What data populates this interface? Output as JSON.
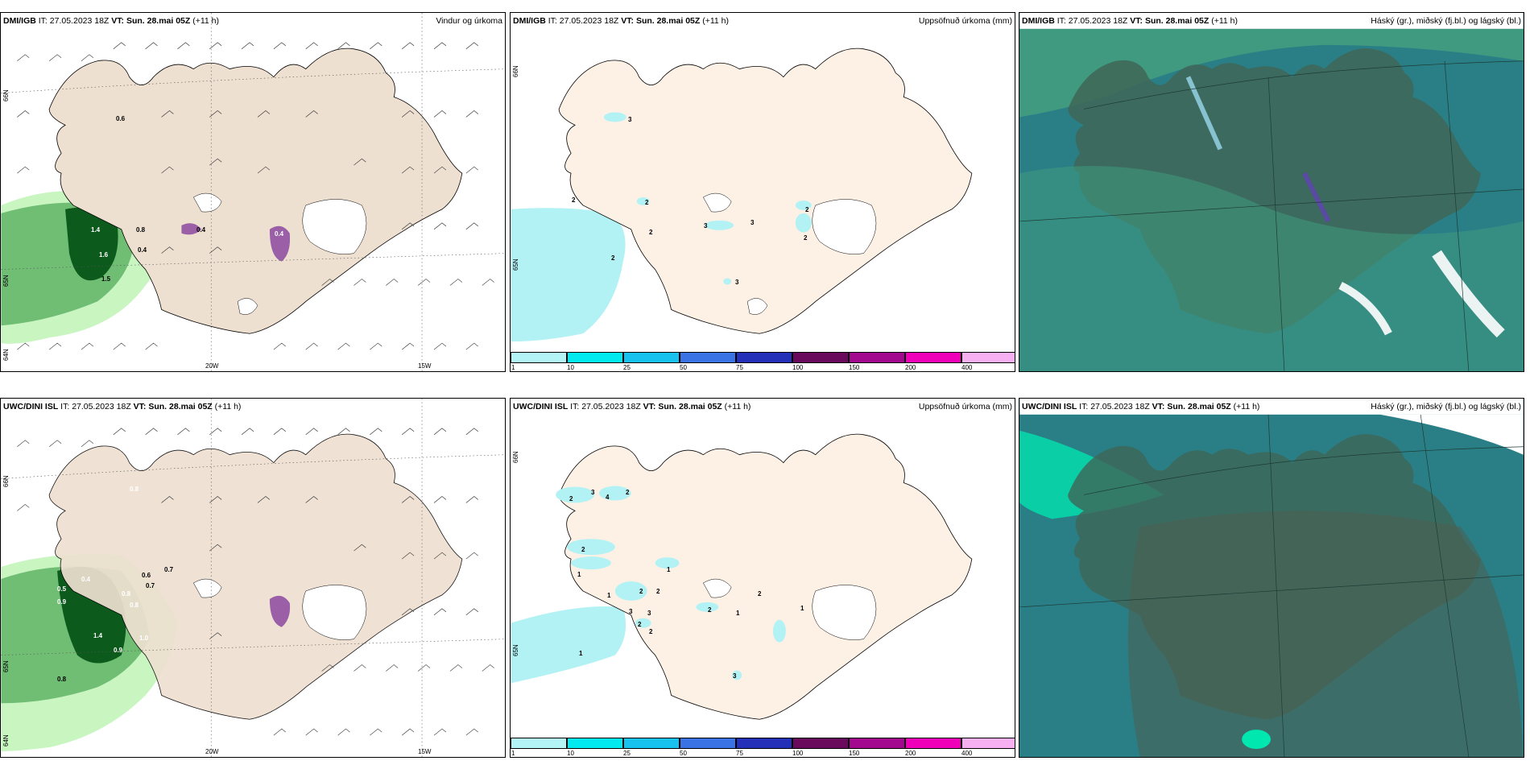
{
  "panels": [
    {
      "id": "top-wind",
      "model": "DMI/IGB",
      "it_label": "IT:",
      "it_value": "27.05.2023 18Z",
      "vt_label": "VT:",
      "vt_value": "Sun. 28.mai 05Z",
      "lead": "(+11 h)",
      "title": "Vindur og úrkoma",
      "lat_labels": [
        "66N",
        "65N",
        "64N"
      ],
      "lon_labels": [
        "20W",
        "15W"
      ],
      "values": [
        "0.6",
        "1.4",
        "1.6",
        "1.5",
        "0.4",
        "0.4",
        "0.8",
        "0.4"
      ]
    },
    {
      "id": "top-precip",
      "model": "DMI/IGB",
      "it_label": "IT:",
      "it_value": "27.05.2023 18Z",
      "vt_label": "VT:",
      "vt_value": "Sun. 28.mai 05Z",
      "lead": "(+11 h)",
      "title": "Uppsöfnuð úrkoma (mm)",
      "lat_labels": [
        "66N",
        "65N"
      ],
      "values": [
        "3",
        "2",
        "2",
        "2",
        "2",
        "3",
        "3",
        "2",
        "2",
        "3"
      ]
    },
    {
      "id": "top-clouds",
      "model": "DMI/IGB",
      "it_label": "IT:",
      "it_value": "27.05.2023 18Z",
      "vt_label": "VT:",
      "vt_value": "Sun. 28.mai 05Z",
      "lead": "(+11 h)",
      "title": "Háský (gr.), miðský (fj.bl.) og lágský (bl.)"
    },
    {
      "id": "bot-wind",
      "model": "UWC/DINI ISL",
      "it_label": "IT:",
      "it_value": "27.05.2023 18Z",
      "vt_label": "VT:",
      "vt_value": "Sun. 28.mai 05Z",
      "lead": "(+11 h)",
      "title": "",
      "lat_labels": [
        "66N",
        "65N",
        "64N"
      ],
      "lon_labels": [
        "20W",
        "15W"
      ],
      "values": [
        "0.8",
        "0.4",
        "0.5",
        "0.9",
        "1.4",
        "0.9",
        "0.8",
        "0.8",
        "0.7",
        "0.6",
        "1.0",
        "0.8",
        "0.7"
      ]
    },
    {
      "id": "bot-precip",
      "model": "UWC/DINI ISL",
      "it_label": "IT:",
      "it_value": "27.05.2023 18Z",
      "vt_label": "VT:",
      "vt_value": "Sun. 28.mai 05Z",
      "lead": "(+11 h)",
      "title": "Uppsöfnuð úrkoma (mm)",
      "lat_labels": [
        "66N",
        "65N"
      ],
      "values": [
        "2",
        "3",
        "4",
        "2",
        "2",
        "1",
        "1",
        "2",
        "2",
        "1",
        "2",
        "3",
        "3",
        "2",
        "1",
        "1",
        "2",
        "2",
        "1",
        "3"
      ]
    },
    {
      "id": "bot-clouds",
      "model": "UWC/DINI ISL",
      "it_label": "IT:",
      "it_value": "27.05.2023 18Z",
      "vt_label": "VT:",
      "vt_value": "Sun. 28.mai 05Z",
      "lead": "(+11 h)",
      "title": "Háský (gr.), miðský (fj.bl.) og lágský (bl.)"
    }
  ],
  "colorbar": {
    "ticks": [
      "1",
      "10",
      "25",
      "50",
      "75",
      "100",
      "150",
      "200",
      "400"
    ],
    "colors": [
      "#b3f5f7",
      "#00eaf0",
      "#18c2ee",
      "#3a73e3",
      "#2530b8",
      "#6a0a5c",
      "#a3098f",
      "#f000b8",
      "#f7b0f2"
    ]
  },
  "colors": {
    "land": "#eee0d1",
    "land_precip": "#fdf1e6",
    "precip_light": "#b2f2f4",
    "green_light": "#c8f5c0",
    "green_mid": "#70bd74",
    "green_dark": "#0d5a1d",
    "purple": "#9a5fa6",
    "cloud_teal": "#2a7f86",
    "cloud_green": "#3f9a80",
    "cloud_dark": "#3f6657"
  }
}
